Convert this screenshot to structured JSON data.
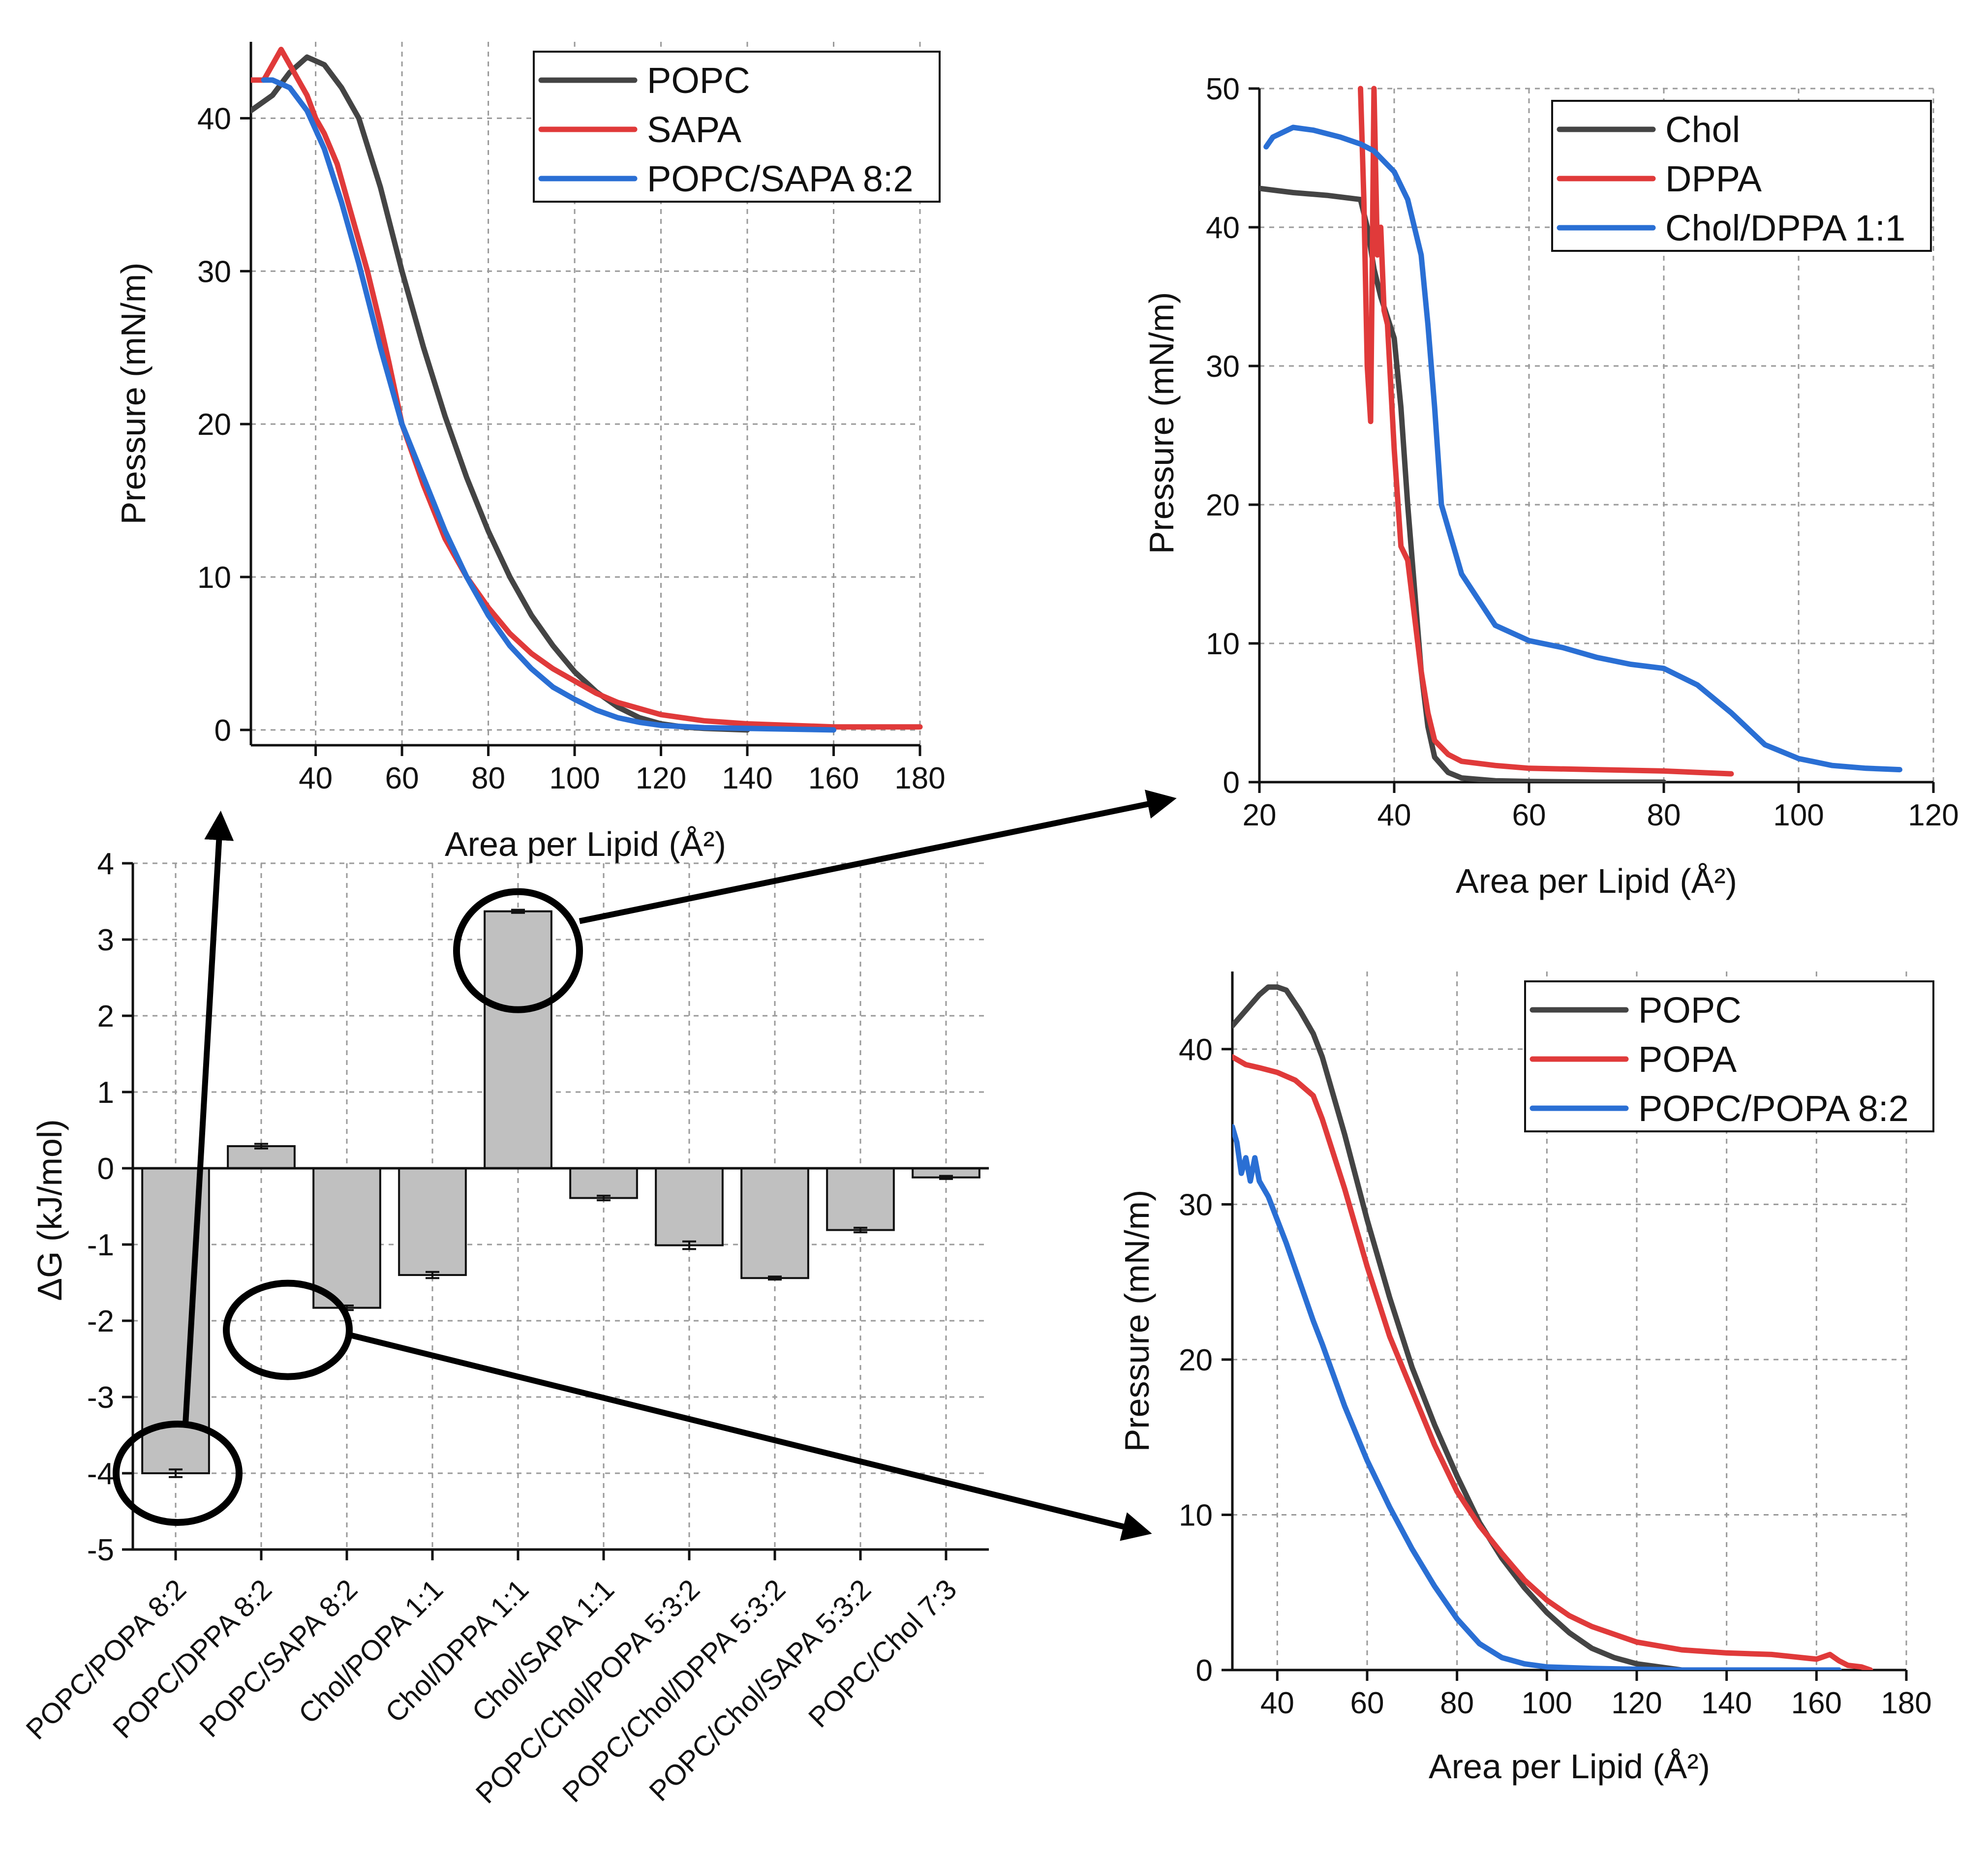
{
  "chart_data": [
    {
      "id": "bar",
      "type": "bar",
      "title": "",
      "xlabel": "",
      "ylabel": "ΔG (kJ/mol)",
      "ylim": [
        -5,
        4
      ],
      "yticks": [
        -5,
        -4,
        -3,
        -2,
        -1,
        0,
        1,
        2,
        3,
        4
      ],
      "grid": true,
      "categories": [
        "POPC/POPA 8:2",
        "POPC/DPPA 8:2",
        "POPC/SAPA 8:2",
        "Chol/POPA 1:1",
        "Chol/DPPA 1:1",
        "Chol/SAPA 1:1",
        "POPC/Chol/POPA 5:3:2",
        "POPC/Chol/DPPA 5:3:2",
        "POPC/Chol/SAPA 5:3:2",
        "POPC/Chol 7:3"
      ],
      "values": [
        -4.0,
        0.29,
        -1.83,
        -1.4,
        3.37,
        -0.39,
        -1.01,
        -1.44,
        -0.81,
        -0.12
      ],
      "errors": [
        0.05,
        0.03,
        0.03,
        0.04,
        0.02,
        0.03,
        0.05,
        0.02,
        0.03,
        0.02
      ],
      "callouts": [
        "POPC/POPA 8:2",
        "POPC/SAPA 8:2",
        "Chol/DPPA 1:1"
      ]
    },
    {
      "id": "sapa",
      "type": "line",
      "xlabel": "Area per Lipid (Å²)",
      "ylabel": "Pressure (mN/m)",
      "xlim": [
        25,
        180
      ],
      "ylim": [
        -1,
        45
      ],
      "xticks": [
        40,
        60,
        80,
        100,
        120,
        140,
        160,
        180
      ],
      "yticks": [
        0,
        10,
        20,
        30,
        40
      ],
      "grid": true,
      "legend": "top-right",
      "series": [
        {
          "name": "POPC",
          "color": "#444444",
          "x": [
            25,
            30,
            34,
            38,
            42,
            46,
            50,
            55,
            60,
            65,
            70,
            75,
            80,
            85,
            90,
            95,
            100,
            105,
            110,
            115,
            120,
            125,
            130,
            135,
            140
          ],
          "y": [
            40.5,
            41.5,
            43,
            44,
            43.5,
            42,
            40,
            35.5,
            30,
            25,
            20.5,
            16.5,
            13,
            10,
            7.5,
            5.5,
            3.8,
            2.5,
            1.5,
            0.8,
            0.4,
            0.2,
            0.1,
            0.05,
            0
          ]
        },
        {
          "name": "SAPA",
          "color": "#e03a3a",
          "x": [
            25,
            28,
            30,
            32,
            34,
            36,
            38,
            40,
            42,
            45,
            48,
            50,
            52,
            55,
            57,
            60,
            65,
            70,
            75,
            80,
            85,
            90,
            95,
            100,
            105,
            110,
            120,
            130,
            140,
            150,
            160,
            170,
            180
          ],
          "y": [
            42.5,
            42.5,
            43.5,
            44.5,
            43.5,
            42.5,
            41.5,
            40,
            39,
            37,
            34,
            32,
            30,
            26.5,
            24,
            20,
            16,
            12.5,
            10,
            8,
            6.3,
            5,
            4,
            3.2,
            2.4,
            1.8,
            1,
            0.6,
            0.4,
            0.3,
            0.2,
            0.2,
            0.2
          ]
        },
        {
          "name": "POPC/SAPA 8:2",
          "color": "#2a6fd4",
          "x": [
            28,
            30,
            34,
            38,
            42,
            46,
            50,
            55,
            60,
            65,
            70,
            75,
            80,
            85,
            90,
            95,
            100,
            105,
            110,
            115,
            120,
            130,
            140,
            150,
            160
          ],
          "y": [
            42.5,
            42.5,
            42,
            40.5,
            38,
            34.5,
            30.5,
            25,
            20,
            16.5,
            13,
            10,
            7.5,
            5.5,
            4,
            2.8,
            2,
            1.3,
            0.8,
            0.5,
            0.3,
            0.15,
            0.1,
            0.05,
            0
          ]
        }
      ]
    },
    {
      "id": "dppa",
      "type": "line",
      "xlabel": "Area per Lipid (Å²)",
      "ylabel": "Pressure (mN/m)",
      "xlim": [
        20,
        120
      ],
      "ylim": [
        0,
        50
      ],
      "xticks": [
        20,
        40,
        60,
        80,
        100,
        120
      ],
      "yticks": [
        0,
        10,
        20,
        30,
        40,
        50
      ],
      "grid": true,
      "legend": "top-right",
      "series": [
        {
          "name": "Chol",
          "color": "#444444",
          "x": [
            20,
            25,
            30,
            35,
            36,
            37,
            38,
            39,
            40,
            41,
            42,
            43,
            44,
            45,
            46,
            48,
            50,
            55,
            60,
            70,
            80
          ],
          "y": [
            42.8,
            42.5,
            42.3,
            42,
            40,
            37,
            35,
            33.5,
            32,
            27,
            20,
            14,
            8,
            4,
            1.8,
            0.7,
            0.3,
            0.1,
            0.05,
            0,
            0
          ]
        },
        {
          "name": "DPPA",
          "color": "#e03a3a",
          "x": [
            35,
            35.5,
            36,
            36.5,
            37,
            37.5,
            38,
            38.5,
            39,
            40,
            41,
            42,
            43,
            44,
            45,
            46,
            48,
            50,
            55,
            60,
            70,
            80,
            90
          ],
          "y": [
            50,
            42,
            30,
            26,
            50,
            38,
            40,
            34,
            33,
            24,
            17,
            16,
            12,
            8,
            5,
            3,
            2,
            1.5,
            1.2,
            1,
            0.9,
            0.8,
            0.6
          ]
        },
        {
          "name": "Chol/DPPA 1:1",
          "color": "#2a6fd4",
          "x": [
            21,
            22,
            25,
            28,
            32,
            35,
            37,
            40,
            42,
            44,
            45,
            46,
            47,
            50,
            55,
            60,
            65,
            70,
            75,
            80,
            85,
            90,
            95,
            100,
            105,
            110,
            115
          ],
          "y": [
            45.8,
            46.5,
            47.2,
            47,
            46.5,
            46,
            45.5,
            44,
            42,
            38,
            33,
            27,
            20,
            15,
            11.3,
            10.2,
            9.7,
            9,
            8.5,
            8.2,
            7,
            5,
            2.7,
            1.7,
            1.2,
            1,
            0.9
          ]
        }
      ]
    },
    {
      "id": "popa",
      "type": "line",
      "xlabel": "Area per Lipid (Å²)",
      "ylabel": "Pressure (mN/m)",
      "xlim": [
        30,
        180
      ],
      "ylim": [
        0,
        45
      ],
      "xticks": [
        40,
        60,
        80,
        100,
        120,
        140,
        160,
        180
      ],
      "yticks": [
        0,
        10,
        20,
        30,
        40
      ],
      "grid": true,
      "legend": "top-right",
      "series": [
        {
          "name": "POPC",
          "color": "#444444",
          "x": [
            30,
            33,
            36,
            38,
            40,
            42,
            45,
            48,
            50,
            55,
            60,
            65,
            70,
            75,
            80,
            85,
            90,
            95,
            100,
            105,
            110,
            115,
            120,
            125,
            130
          ],
          "y": [
            41.5,
            42.5,
            43.5,
            44,
            44,
            43.8,
            42.5,
            41,
            39.5,
            34.5,
            29,
            24,
            19.5,
            15.8,
            12.5,
            9.5,
            7.2,
            5.3,
            3.7,
            2.4,
            1.4,
            0.8,
            0.4,
            0.2,
            0
          ]
        },
        {
          "name": "POPA",
          "color": "#e03a3a",
          "x": [
            30,
            33,
            36,
            40,
            44,
            48,
            50,
            55,
            60,
            65,
            70,
            75,
            80,
            85,
            90,
            95,
            100,
            105,
            110,
            120,
            130,
            140,
            150,
            160,
            163,
            165,
            167,
            170,
            172
          ],
          "y": [
            39.5,
            39,
            38.8,
            38.5,
            38,
            37,
            35.5,
            31,
            26,
            21.5,
            18,
            14.5,
            11.5,
            9.3,
            7.5,
            5.8,
            4.5,
            3.5,
            2.8,
            1.8,
            1.3,
            1.1,
            1,
            0.7,
            1,
            0.6,
            0.3,
            0.2,
            0
          ]
        },
        {
          "name": "POPC/POPA 8:2",
          "color": "#2a6fd4",
          "x": [
            30,
            31,
            32,
            33,
            34,
            35,
            36,
            37,
            38,
            40,
            42,
            45,
            48,
            50,
            55,
            60,
            65,
            70,
            75,
            80,
            85,
            90,
            95,
            100,
            110,
            120,
            130,
            140,
            150,
            160,
            165
          ],
          "y": [
            35,
            34,
            32,
            33,
            31.5,
            33,
            31.5,
            31,
            30.5,
            29,
            27.5,
            25,
            22.5,
            21,
            17,
            13.5,
            10.5,
            7.8,
            5.4,
            3.3,
            1.7,
            0.8,
            0.4,
            0.2,
            0.1,
            0.05,
            0,
            0,
            0,
            0,
            0
          ]
        }
      ]
    }
  ]
}
